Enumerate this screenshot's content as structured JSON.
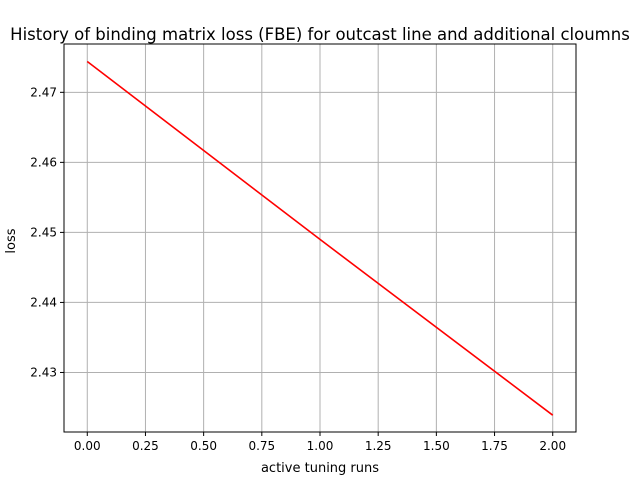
{
  "chart_data": {
    "type": "line",
    "title": "History of binding matrix loss (FBE) for outcast line and additional cloumns",
    "xlabel": "active tuning runs",
    "ylabel": "loss",
    "xlim": [
      -0.1,
      2.1
    ],
    "ylim": [
      2.4215,
      2.4769
    ],
    "x_ticks": [
      0.0,
      0.25,
      0.5,
      0.75,
      1.0,
      1.25,
      1.5,
      1.75,
      2.0
    ],
    "x_tick_labels": [
      "0.00",
      "0.25",
      "0.50",
      "0.75",
      "1.00",
      "1.25",
      "1.50",
      "1.75",
      "2.00"
    ],
    "y_ticks": [
      2.43,
      2.44,
      2.45,
      2.46,
      2.47
    ],
    "y_tick_labels": [
      "2.43",
      "2.44",
      "2.45",
      "2.46",
      "2.47"
    ],
    "grid": true,
    "series": [
      {
        "color": "#ff0000",
        "x": [
          0,
          1,
          2
        ],
        "y": [
          2.4744,
          2.449,
          2.4239
        ]
      }
    ]
  }
}
